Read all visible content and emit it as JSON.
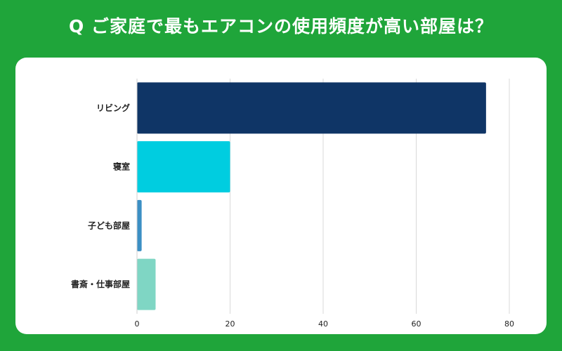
{
  "header": {
    "title": "Q ご家庭で最もエアコンの使用頻度が高い部屋は？"
  },
  "colors": {
    "background": "#1fa53a",
    "panel": "#ffffff",
    "grid": "#d9d9d9"
  },
  "chart_data": {
    "type": "bar",
    "orientation": "horizontal",
    "title": "Q ご家庭で最もエアコンの使用頻度が高い部屋は？",
    "categories": [
      "リビング",
      "寝室",
      "子ども部屋",
      "書斎・仕事部屋"
    ],
    "values": [
      75,
      20,
      1,
      4
    ],
    "colors": [
      "#0f3566",
      "#00cde0",
      "#3b8fc4",
      "#7fd6c4"
    ],
    "xlim": [
      0,
      80
    ],
    "xticks": [
      "0",
      "20",
      "40",
      "60",
      "80"
    ],
    "grid": true,
    "xlabel": "",
    "ylabel": ""
  }
}
